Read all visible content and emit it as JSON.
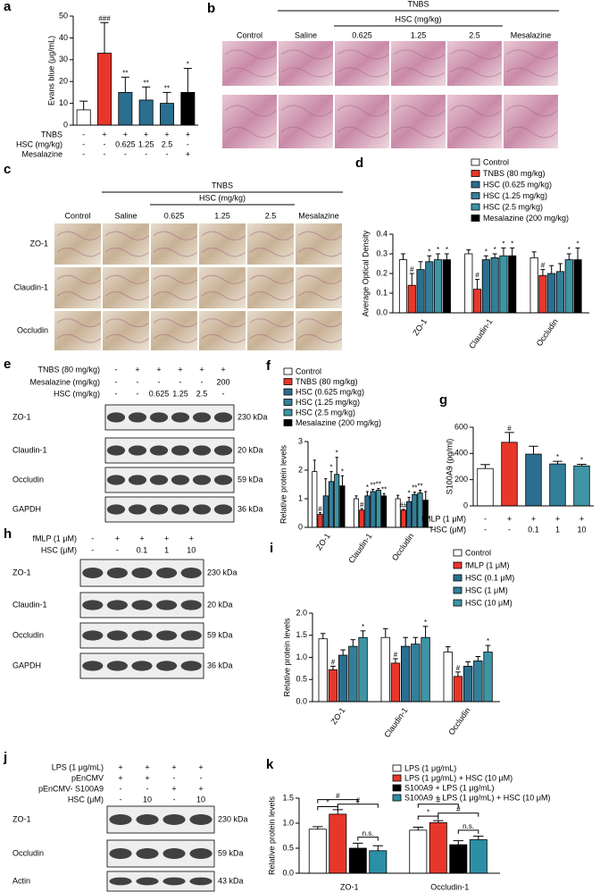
{
  "chart_data": [
    {
      "letter": "a",
      "type": "bar",
      "ylabel": "Evans blue (μg/mL)",
      "values": [
        7,
        33,
        15,
        11.5,
        10,
        15
      ],
      "errors": [
        4,
        14,
        7,
        6,
        5,
        11
      ],
      "colors": [
        "#ffffff",
        "#e8372a",
        "#2b6e8f",
        "#2b6e8f",
        "#2b6e8f",
        "#000000"
      ],
      "marks": [
        null,
        "###",
        "**",
        "**",
        "**",
        "*"
      ],
      "conditions": [
        {
          "label": "TNBS",
          "values": [
            "-",
            "+",
            "+",
            "+",
            "+",
            "+"
          ]
        },
        {
          "label": "HSC (mg/kg)",
          "values": [
            "-",
            "-",
            "0.625",
            "1.25",
            "2.5",
            "-"
          ]
        },
        {
          "label": "Mesalazine",
          "values": [
            "-",
            "-",
            "-",
            "-",
            "-",
            "+"
          ]
        }
      ],
      "ylim": [
        0,
        50
      ],
      "yticks": [
        0,
        10,
        20,
        30,
        40,
        50
      ]
    },
    {
      "letter": "d",
      "type": "bar",
      "ylabel": "Average Optical Density",
      "categories": [
        "ZO-1",
        "Claudin-1",
        "Occludin"
      ],
      "series": [
        {
          "name": "Control",
          "color": "#ffffff",
          "values": [
            0.27,
            0.3,
            0.28
          ],
          "errors": [
            0.03,
            0.02,
            0.03
          ]
        },
        {
          "name": "TNBS (80 mg/kg)",
          "color": "#e8372a",
          "values": [
            0.14,
            0.12,
            0.19
          ],
          "errors": [
            0.06,
            0.05,
            0.03
          ],
          "marks": [
            "#",
            "#",
            "#"
          ]
        },
        {
          "name": "HSC (0.625 mg/kg)",
          "color": "#2b6e8f",
          "values": [
            0.22,
            0.27,
            0.2
          ],
          "errors": [
            0.04,
            0.02,
            0.04
          ],
          "marks": [
            null,
            "*",
            null
          ]
        },
        {
          "name": "HSC (1.25 mg/kg)",
          "color": "#337f99",
          "values": [
            0.26,
            0.28,
            0.21
          ],
          "errors": [
            0.03,
            0.02,
            0.04
          ],
          "marks": [
            "*",
            "*",
            null
          ]
        },
        {
          "name": "HSC (2.5 mg/kg)",
          "color": "#3d95a5",
          "values": [
            0.27,
            0.29,
            0.27
          ],
          "errors": [
            0.03,
            0.04,
            0.03
          ],
          "marks": [
            "*",
            "*",
            "*"
          ]
        },
        {
          "name": "Mesalazine (200 mg/kg)",
          "color": "#000000",
          "values": [
            0.27,
            0.29,
            0.27
          ],
          "errors": [
            0.03,
            0.04,
            0.06
          ],
          "marks": [
            "*",
            "*",
            "*"
          ]
        }
      ],
      "ylim": [
        0,
        0.4
      ],
      "yticks": [
        {
          "value": 0,
          "label": "0.0"
        },
        0.1,
        0.2,
        0.3,
        0.4
      ]
    },
    {
      "letter": "f",
      "type": "bar",
      "ylabel": "Relative protein levels",
      "categories": [
        "ZO-1",
        "Claudin-1",
        "Occludin"
      ],
      "series": [
        {
          "name": "Control",
          "color": "#ffffff",
          "values": [
            1.95,
            1.0,
            1.0
          ],
          "errors": [
            0.4,
            0.1,
            0.12
          ]
        },
        {
          "name": "TNBS (80 mg/kg)",
          "color": "#e8372a",
          "values": [
            0.45,
            0.6,
            0.6
          ],
          "errors": [
            0.06,
            0.05,
            0.03
          ],
          "marks": [
            "#",
            "#",
            "##"
          ]
        },
        {
          "name": "HSC (0.625 mg/kg)",
          "color": "#2b6e8f",
          "values": [
            1.1,
            1.1,
            0.9
          ],
          "errors": [
            0.6,
            0.15,
            0.15
          ],
          "marks": [
            null,
            "*",
            "*"
          ]
        },
        {
          "name": "HSC (1.25 mg/kg)",
          "color": "#337f99",
          "values": [
            1.6,
            1.25,
            1.15
          ],
          "errors": [
            0.35,
            0.08,
            0.08
          ],
          "marks": [
            "*",
            "**",
            "**"
          ]
        },
        {
          "name": "HSC (2.5 mg/kg)",
          "color": "#3d95a5",
          "values": [
            1.85,
            1.3,
            1.2
          ],
          "errors": [
            0.6,
            0.06,
            0.1
          ],
          "marks": [
            "*",
            "**",
            "**"
          ]
        },
        {
          "name": "Mesalazine (200 mg/kg)",
          "color": "#000000",
          "values": [
            1.45,
            1.1,
            0.95
          ],
          "errors": [
            0.35,
            0.08,
            0.3
          ],
          "marks": [
            "*",
            "**",
            null
          ]
        }
      ],
      "ylim": [
        0,
        3
      ],
      "yticks": [
        0,
        1,
        2,
        3
      ]
    },
    {
      "letter": "g",
      "type": "bar",
      "ylabel": "S100A9 (pg/ml)",
      "values": [
        285,
        485,
        395,
        320,
        305
      ],
      "errors": [
        30,
        75,
        60,
        20,
        12
      ],
      "colors": [
        "#ffffff",
        "#e8372a",
        "#2b6e8f",
        "#337f99",
        "#3d95a5"
      ],
      "marks": [
        null,
        "#",
        null,
        "*",
        "*"
      ],
      "conditions": [
        {
          "label": "fMLP (1 μM)",
          "values": [
            "-",
            "+",
            "+",
            "+",
            "+"
          ]
        },
        {
          "label": "HSC (μM)",
          "values": [
            "-",
            "-",
            "0.1",
            "1",
            "10"
          ]
        }
      ],
      "ylim": [
        0,
        600
      ],
      "yticks": [
        0,
        200,
        400,
        600
      ]
    },
    {
      "letter": "i",
      "type": "bar",
      "ylabel": "Relative protein levels",
      "categories": [
        "ZO-1",
        "Claudin-1",
        "Occludin"
      ],
      "series": [
        {
          "name": "Control",
          "color": "#ffffff",
          "values": [
            1.42,
            1.45,
            1.12
          ],
          "errors": [
            0.12,
            0.2,
            0.12
          ]
        },
        {
          "name": "fMLP (1 μM)",
          "color": "#e8372a",
          "values": [
            0.72,
            0.87,
            0.57
          ],
          "errors": [
            0.08,
            0.1,
            0.1
          ],
          "marks": [
            "#",
            "#",
            "#"
          ]
        },
        {
          "name": "HSC (0.1 μM)",
          "color": "#2b6e8f",
          "values": [
            1.05,
            1.25,
            0.8
          ],
          "errors": [
            0.12,
            0.2,
            0.1
          ]
        },
        {
          "name": "HSC (1 μM)",
          "color": "#337f99",
          "values": [
            1.25,
            1.3,
            0.92
          ],
          "errors": [
            0.15,
            0.15,
            0.1
          ]
        },
        {
          "name": "HSC (10 μM)",
          "color": "#3d95a5",
          "values": [
            1.45,
            1.45,
            1.12
          ],
          "errors": [
            0.15,
            0.25,
            0.15
          ],
          "marks": [
            "*",
            "*",
            "*"
          ]
        }
      ],
      "ylim": [
        0,
        2
      ],
      "yticks": [
        {
          "value": 0,
          "label": "0.0"
        },
        0.5,
        {
          "value": 1,
          "label": "1.0"
        },
        1.5,
        {
          "value": 2,
          "label": "2.0"
        }
      ]
    },
    {
      "letter": "k",
      "type": "bar",
      "ylabel": "Relative protein levels",
      "categories": [
        "ZO-1",
        "Occludin-1"
      ],
      "series": [
        {
          "name": "LPS (1 μg/mL)",
          "color": "#ffffff",
          "values": [
            0.88,
            0.86
          ],
          "errors": [
            0.05,
            0.06
          ]
        },
        {
          "name": "LPS (1 μg/mL) + HSC (10 μM)",
          "color": "#e8372a",
          "values": [
            1.18,
            1.01
          ],
          "errors": [
            0.09,
            0.04
          ]
        },
        {
          "name": "S100A9 + LPS (1 μg/mL)",
          "color": "#000000",
          "values": [
            0.5,
            0.57
          ],
          "errors": [
            0.1,
            0.08
          ]
        },
        {
          "name": "S100A9 + LPS (1 μg/mL) + HSC (10 μM)",
          "color": "#2b8fa5",
          "values": [
            0.45,
            0.67
          ],
          "errors": [
            0.1,
            0.07
          ]
        }
      ],
      "annotations": [
        "#",
        "*",
        "#",
        "n.s.",
        "#",
        "*",
        "#",
        "n.s."
      ],
      "ylim": [
        0,
        1.5
      ],
      "yticks": [
        {
          "value": 0,
          "label": "0.0"
        },
        0.5,
        {
          "value": 1,
          "label": "1.0"
        },
        1.5
      ]
    }
  ],
  "histology": [
    {
      "letter": "b",
      "header": "TNBS",
      "subheader": "HSC (mg/kg)",
      "columns": [
        "Control",
        "Saline",
        "0.625",
        "1.25",
        "2.5",
        "Mesalazine"
      ]
    },
    {
      "letter": "c",
      "header": "TNBS",
      "subheader": "HSC (mg/kg)",
      "columns": [
        "Control",
        "Saline",
        "0.625",
        "1.25",
        "2.5",
        "Mesalazine"
      ],
      "rows": [
        "ZO-1",
        "Claudin-1",
        "Occludin"
      ]
    }
  ],
  "blots": [
    {
      "letter": "e",
      "conditions": [
        {
          "label": "TNBS (80 mg/kg)",
          "values": [
            "-",
            "+",
            "+",
            "+",
            "+",
            "+"
          ]
        },
        {
          "label": "Mesalazine (mg/kg)",
          "values": [
            "-",
            "-",
            "-",
            "-",
            "-",
            "200"
          ]
        },
        {
          "label": "HSC (mg/kg)",
          "values": [
            "-",
            "-",
            "0.625",
            "1.25",
            "2.5",
            "-"
          ]
        }
      ],
      "rows": [
        {
          "label": "ZO-1",
          "size": "230 kDa"
        },
        {
          "label": "Claudin-1",
          "size": "20 kDa"
        },
        {
          "label": "Occludin",
          "size": "59 kDa"
        },
        {
          "label": "GAPDH",
          "size": "36 kDa"
        }
      ]
    },
    {
      "letter": "h",
      "conditions": [
        {
          "label": "fMLP (1 μM)",
          "values": [
            "-",
            "+",
            "+",
            "+",
            "+"
          ]
        },
        {
          "label": "HSC (μM)",
          "values": [
            "-",
            "-",
            "0.1",
            "1",
            "10"
          ]
        }
      ],
      "rows": [
        {
          "label": "ZO-1",
          "size": "230 kDa"
        },
        {
          "label": "Claudin-1",
          "size": "20 kDa"
        },
        {
          "label": "Occludin",
          "size": "59 kDa"
        },
        {
          "label": "GAPDH",
          "size": "36 kDa"
        }
      ]
    },
    {
      "letter": "j",
      "conditions": [
        {
          "label": "LPS (1 μg/mL)",
          "values": [
            "+",
            "+",
            "+",
            "+"
          ]
        },
        {
          "label": "pEnCMV",
          "values": [
            "+",
            "+",
            "-",
            "-"
          ]
        },
        {
          "label": "pEnCMV- S100A9",
          "values": [
            "-",
            "-",
            "+",
            "+"
          ]
        },
        {
          "label": "HSC (μM)",
          "values": [
            "-",
            "10",
            "-",
            "10"
          ]
        }
      ],
      "rows": [
        {
          "label": "ZO-1",
          "size": "230 kDa"
        },
        {
          "label": "Occludin",
          "size": "59 kDa"
        },
        {
          "label": "Actin",
          "size": "43 kDa"
        }
      ]
    }
  ]
}
